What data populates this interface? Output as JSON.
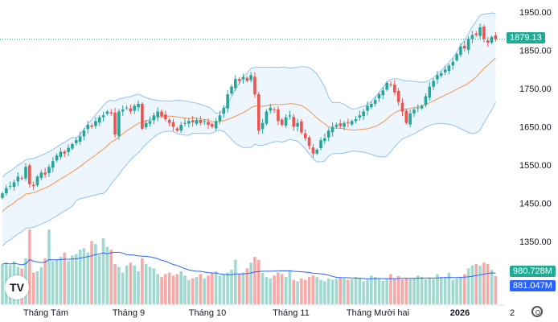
{
  "chart_data": {
    "type": "candlestick",
    "price_axis": {
      "ticks": [
        1950,
        1850,
        1750,
        1650,
        1550,
        1450,
        1350
      ],
      "tick_labels": [
        "1950.00",
        "1850.00",
        "1750.00",
        "1650.00",
        "1550.00",
        "1450.00",
        "1350.00"
      ],
      "range": [
        1280,
        1980
      ]
    },
    "time_axis": {
      "labels": [
        "Tháng Tám",
        "Tháng 9",
        "Tháng 10",
        "Tháng 11",
        "Tháng Mười hai",
        "2026",
        "2"
      ]
    },
    "last_price": 1879.13,
    "last_price_label": "1879.13",
    "volume_label": "980.728M",
    "volume_ma_label": "881.047M",
    "close": [
      1476,
      1490,
      1495,
      1505,
      1520,
      1515,
      1545,
      1500,
      1495,
      1520,
      1530,
      1525,
      1545,
      1560,
      1575,
      1585,
      1580,
      1595,
      1605,
      1615,
      1625,
      1640,
      1655,
      1650,
      1665,
      1675,
      1680,
      1690,
      1685,
      1630,
      1690,
      1695,
      1700,
      1690,
      1705,
      1710,
      1645,
      1660,
      1665,
      1680,
      1690,
      1678,
      1670,
      1660,
      1650,
      1640,
      1655,
      1660,
      1665,
      1662,
      1668,
      1660,
      1665,
      1655,
      1650,
      1665,
      1680,
      1700,
      1735,
      1755,
      1775,
      1770,
      1780,
      1770,
      1785,
      1735,
      1640,
      1660,
      1690,
      1700,
      1695,
      1665,
      1655,
      1675,
      1680,
      1650,
      1660,
      1635,
      1620,
      1600,
      1580,
      1590,
      1615,
      1620,
      1640,
      1650,
      1655,
      1652,
      1660,
      1660,
      1665,
      1670,
      1680,
      1690,
      1705,
      1710,
      1720,
      1735,
      1745,
      1765,
      1760,
      1740,
      1715,
      1690,
      1660,
      1685,
      1695,
      1700,
      1705,
      1730,
      1755,
      1770,
      1785,
      1790,
      1800,
      1810,
      1820,
      1840,
      1860,
      1855,
      1880,
      1890,
      1890,
      1910,
      1880,
      1870,
      1885,
      1879.13
    ],
    "volume_millions": [
      1400,
      1450,
      1350,
      1500,
      1300,
      1250,
      1600,
      2600,
      1100,
      1150,
      1300,
      1600,
      2600,
      1500,
      1550,
      1650,
      1800,
      1500,
      1700,
      1750,
      1900,
      1950,
      1800,
      2200,
      2100,
      1700,
      2300,
      2000,
      1900,
      1400,
      1300,
      1100,
      1350,
      1450,
      1350,
      1150,
      1600,
      1400,
      1300,
      1250,
      1050,
      950,
      1050,
      1100,
      1000,
      1050,
      1150,
      1000,
      850,
      900,
      950,
      1050,
      900,
      1000,
      1100,
      1150,
      1000,
      1050,
      1100,
      1200,
      1550,
      1050,
      1100,
      1250,
      1450,
      1650,
      1550,
      1100,
      950,
      900,
      1000,
      1100,
      1050,
      950,
      1150,
      850,
      800,
      900,
      850,
      950,
      1000,
      950,
      850,
      800,
      900,
      850,
      880,
      920,
      900,
      850,
      880,
      950,
      920,
      800,
      850,
      1000,
      950,
      880,
      820,
      900,
      1050,
      880,
      980,
      870,
      920,
      880,
      900,
      1000,
      950,
      870,
      930,
      880,
      1050,
      950,
      950,
      1100,
      850,
      900,
      950,
      1050,
      1250,
      1350,
      1400,
      1350,
      1450,
      1400,
      1200,
      980.728
    ],
    "indicators": [
      "Bollinger Bands (20, 2)",
      "Volume MA"
    ],
    "colors": {
      "up": "#26a69a",
      "down": "#ef5350",
      "volume_up": "#9fd9cf",
      "volume_down": "#f7a9a7",
      "bb_basis": "#f7934c",
      "bb_band": "#90c2f5",
      "bb_fill": "#eef6fd",
      "volume_ma": "#2962ff",
      "last_price": "#22ab94"
    },
    "grid": false
  }
}
